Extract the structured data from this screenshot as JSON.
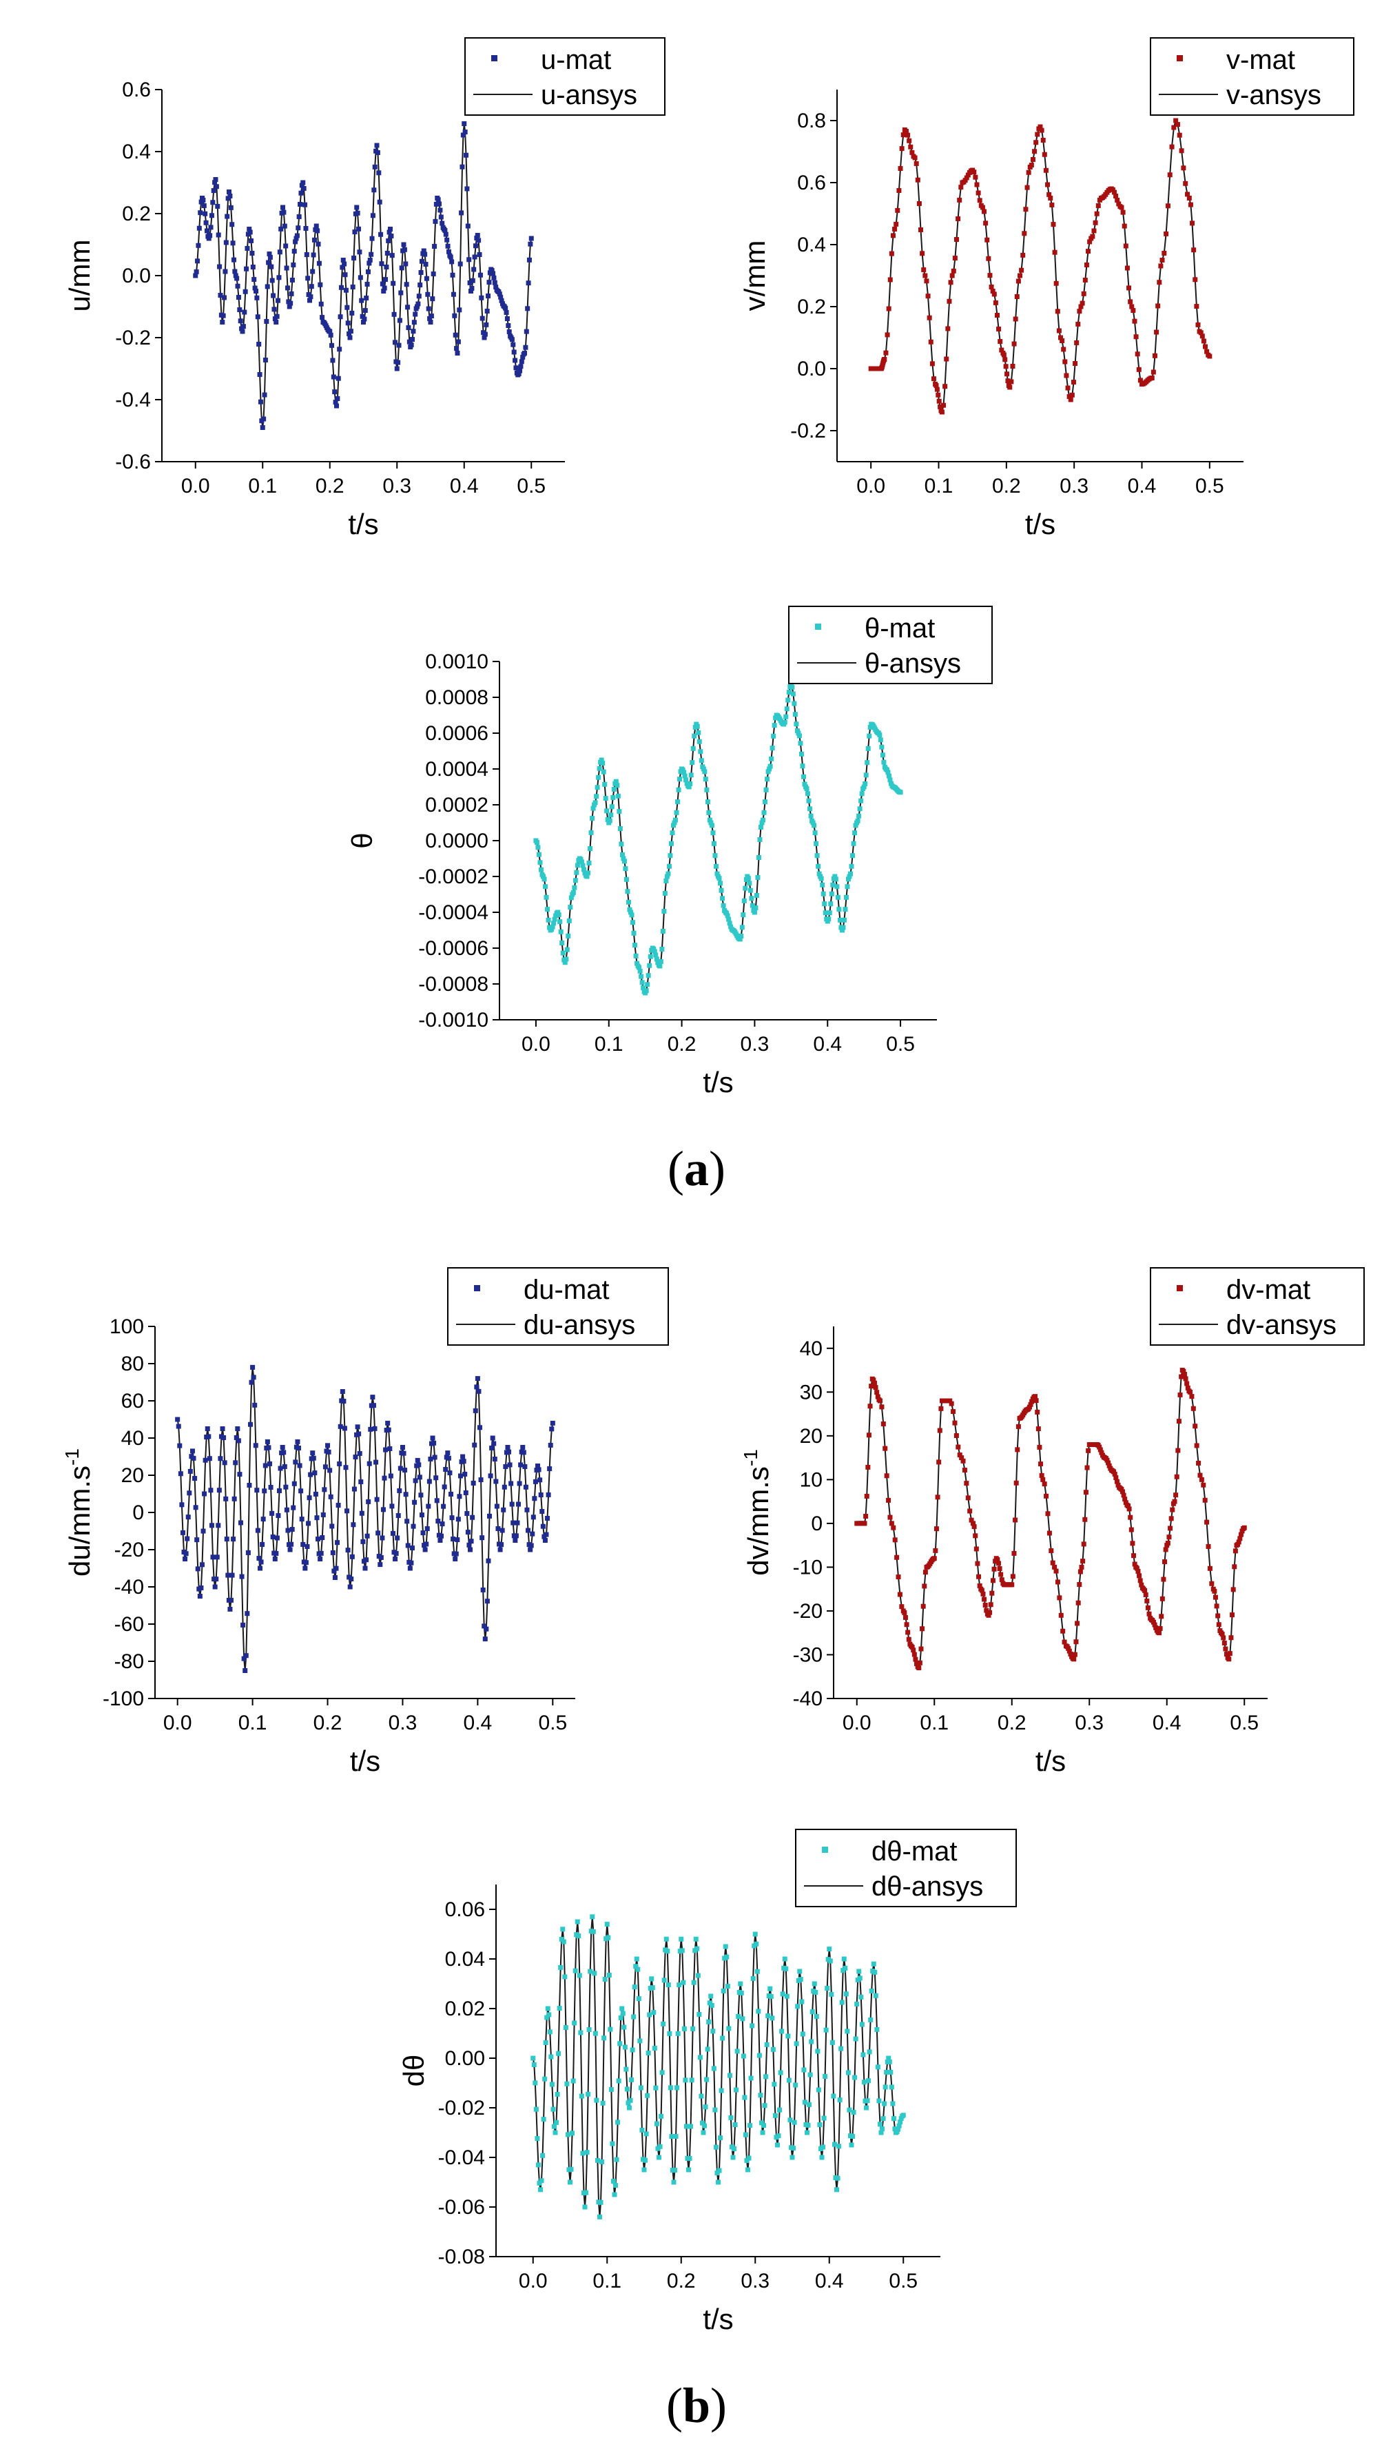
{
  "figure": {
    "panel_a_label": {
      "open": "(",
      "letter": "a",
      "close": ")"
    },
    "panel_b_label": {
      "open": "(",
      "letter": "b",
      "close": ")"
    }
  },
  "colors": {
    "navy": "#1f2b8f",
    "darkred": "#a81010",
    "cyan": "#2ec8c8",
    "line": "#1a1a1a"
  },
  "chart_data": [
    {
      "id": "u",
      "type": "line",
      "xlabel": "t/s",
      "ylabel": "u/mm",
      "xlim": [
        -0.05,
        0.55
      ],
      "ylim": [
        -0.6,
        0.6
      ],
      "xticks": [
        "0.0",
        "0.1",
        "0.2",
        "0.3",
        "0.4",
        "0.5"
      ],
      "yticks": [
        "-0.6",
        "-0.4",
        "-0.2",
        "0.0",
        "0.2",
        "0.4",
        "0.6"
      ],
      "legend": [
        "u-mat",
        "u-ansys"
      ],
      "legend_position": "top-right",
      "color": "navy",
      "x": [
        0.0,
        0.01,
        0.02,
        0.03,
        0.04,
        0.05,
        0.06,
        0.07,
        0.08,
        0.09,
        0.1,
        0.11,
        0.12,
        0.13,
        0.14,
        0.15,
        0.16,
        0.17,
        0.18,
        0.19,
        0.2,
        0.21,
        0.22,
        0.23,
        0.24,
        0.25,
        0.26,
        0.27,
        0.28,
        0.29,
        0.3,
        0.31,
        0.32,
        0.33,
        0.34,
        0.35,
        0.36,
        0.37,
        0.38,
        0.39,
        0.4,
        0.41,
        0.42,
        0.43,
        0.44,
        0.45,
        0.46,
        0.47,
        0.48,
        0.49,
        0.5
      ],
      "y": [
        0.0,
        0.25,
        0.12,
        0.31,
        -0.15,
        0.27,
        0.0,
        -0.18,
        0.15,
        -0.05,
        -0.49,
        0.07,
        -0.15,
        0.22,
        -0.1,
        0.12,
        0.3,
        -0.08,
        0.16,
        -0.15,
        -0.18,
        -0.42,
        0.05,
        -0.2,
        0.22,
        -0.15,
        0.05,
        0.42,
        -0.05,
        0.15,
        -0.3,
        0.1,
        -0.23,
        -0.1,
        0.08,
        -0.15,
        0.25,
        0.15,
        0.06,
        -0.25,
        0.49,
        -0.05,
        0.13,
        -0.2,
        0.02,
        -0.05,
        -0.1,
        -0.2,
        -0.32,
        -0.25,
        0.12
      ]
    },
    {
      "id": "v",
      "type": "line",
      "xlabel": "t/s",
      "ylabel": "v/mm",
      "xlim": [
        -0.05,
        0.55
      ],
      "ylim": [
        -0.3,
        0.9
      ],
      "xticks": [
        "0.0",
        "0.1",
        "0.2",
        "0.3",
        "0.4",
        "0.5"
      ],
      "yticks": [
        "-0.2",
        "0.0",
        "0.2",
        "0.4",
        "0.6",
        "0.8"
      ],
      "legend": [
        "v-mat",
        "v-ansys"
      ],
      "legend_position": "top-right",
      "color": "darkred",
      "x": [
        0.0,
        0.015,
        0.02,
        0.035,
        0.05,
        0.065,
        0.08,
        0.095,
        0.105,
        0.12,
        0.135,
        0.15,
        0.165,
        0.18,
        0.195,
        0.205,
        0.22,
        0.235,
        0.25,
        0.265,
        0.28,
        0.295,
        0.31,
        0.325,
        0.34,
        0.355,
        0.37,
        0.385,
        0.4,
        0.415,
        0.43,
        0.45,
        0.47,
        0.485,
        0.5
      ],
      "y": [
        0.0,
        0.0,
        0.03,
        0.45,
        0.77,
        0.68,
        0.3,
        -0.05,
        -0.14,
        0.3,
        0.6,
        0.64,
        0.52,
        0.25,
        0.05,
        -0.06,
        0.3,
        0.65,
        0.78,
        0.55,
        0.1,
        -0.1,
        0.2,
        0.42,
        0.55,
        0.58,
        0.52,
        0.2,
        -0.05,
        -0.03,
        0.35,
        0.8,
        0.55,
        0.12,
        0.04
      ]
    },
    {
      "id": "theta",
      "type": "line",
      "xlabel": "t/s",
      "ylabel": "θ",
      "xlim": [
        -0.05,
        0.55
      ],
      "ylim": [
        -0.001,
        0.001
      ],
      "xticks": [
        "0.0",
        "0.1",
        "0.2",
        "0.3",
        "0.4",
        "0.5"
      ],
      "yticks": [
        "-0.0010",
        "-0.0008",
        "-0.0006",
        "-0.0004",
        "-0.0002",
        "0.0000",
        "0.0002",
        "0.0004",
        "0.0006",
        "0.0008",
        "0.0010"
      ],
      "legend": [
        "θ-mat",
        "θ-ansys"
      ],
      "legend_position": "top-right",
      "color": "cyan",
      "x": [
        0.0,
        0.01,
        0.02,
        0.03,
        0.04,
        0.05,
        0.06,
        0.07,
        0.08,
        0.09,
        0.1,
        0.11,
        0.12,
        0.13,
        0.14,
        0.15,
        0.16,
        0.17,
        0.18,
        0.19,
        0.2,
        0.21,
        0.22,
        0.23,
        0.24,
        0.25,
        0.26,
        0.27,
        0.28,
        0.29,
        0.3,
        0.31,
        0.32,
        0.33,
        0.34,
        0.35,
        0.36,
        0.37,
        0.38,
        0.39,
        0.4,
        0.41,
        0.42,
        0.43,
        0.44,
        0.45,
        0.46,
        0.47,
        0.48,
        0.49,
        0.5
      ],
      "y": [
        0.0,
        -0.0002,
        -0.0005,
        -0.0004,
        -0.00068,
        -0.0003,
        -0.0001,
        -0.0002,
        0.0002,
        0.00045,
        0.0001,
        0.00033,
        -0.0001,
        -0.0004,
        -0.0007,
        -0.00085,
        -0.0006,
        -0.0007,
        -0.0002,
        0.0001,
        0.0004,
        0.0003,
        0.00065,
        0.0004,
        0.0001,
        -0.0002,
        -0.0004,
        -0.0005,
        -0.00055,
        -0.0002,
        -0.0004,
        0.0001,
        0.0004,
        0.0007,
        0.00065,
        0.00087,
        0.0006,
        0.0003,
        0.0001,
        -0.0002,
        -0.00045,
        -0.0002,
        -0.0005,
        -0.0002,
        0.0001,
        0.0003,
        0.00065,
        0.0006,
        0.0004,
        0.0003,
        0.00027
      ]
    },
    {
      "id": "du",
      "type": "line",
      "xlabel": "t/s",
      "ylabel": "du/mm.s",
      "ylabel_superscript": "-1",
      "xlim": [
        -0.03,
        0.53
      ],
      "ylim": [
        -100,
        100
      ],
      "xticks": [
        "0.0",
        "0.1",
        "0.2",
        "0.3",
        "0.4",
        "0.5"
      ],
      "yticks": [
        "-100",
        "-80",
        "-60",
        "-40",
        "-20",
        "0",
        "20",
        "40",
        "60",
        "80",
        "100"
      ],
      "legend": [
        "du-mat",
        "du-ansys"
      ],
      "legend_position": "top-right",
      "color": "navy",
      "x": [
        0.0,
        0.01,
        0.02,
        0.03,
        0.04,
        0.05,
        0.06,
        0.07,
        0.08,
        0.09,
        0.1,
        0.11,
        0.12,
        0.13,
        0.14,
        0.15,
        0.16,
        0.17,
        0.18,
        0.19,
        0.2,
        0.21,
        0.22,
        0.23,
        0.24,
        0.25,
        0.26,
        0.27,
        0.28,
        0.29,
        0.3,
        0.31,
        0.32,
        0.33,
        0.34,
        0.35,
        0.36,
        0.37,
        0.38,
        0.39,
        0.4,
        0.41,
        0.42,
        0.43,
        0.44,
        0.45,
        0.46,
        0.47,
        0.48,
        0.49,
        0.5
      ],
      "y": [
        50,
        -25,
        33,
        -45,
        45,
        -40,
        45,
        -52,
        45,
        -85,
        78,
        -30,
        38,
        -25,
        35,
        -20,
        38,
        -30,
        32,
        -25,
        36,
        -35,
        65,
        -40,
        46,
        -30,
        62,
        -28,
        48,
        -25,
        35,
        -30,
        28,
        -20,
        40,
        -15,
        32,
        -25,
        30,
        -20,
        72,
        -68,
        40,
        -20,
        35,
        -15,
        35,
        -20,
        25,
        -15,
        48
      ]
    },
    {
      "id": "dv",
      "type": "line",
      "xlabel": "t/s",
      "ylabel": "dv/mm.s",
      "ylabel_superscript": "-1",
      "xlim": [
        -0.03,
        0.53
      ],
      "ylim": [
        -40,
        45
      ],
      "xticks": [
        "0.0",
        "0.1",
        "0.2",
        "0.3",
        "0.4",
        "0.5"
      ],
      "yticks": [
        "-40",
        "-30",
        "-20",
        "-10",
        "0",
        "10",
        "20",
        "30",
        "40"
      ],
      "legend": [
        "dv-mat",
        "dv-ansys"
      ],
      "legend_position": "top-right",
      "color": "darkred",
      "x": [
        0.0,
        0.01,
        0.02,
        0.03,
        0.045,
        0.06,
        0.07,
        0.08,
        0.09,
        0.1,
        0.11,
        0.12,
        0.135,
        0.15,
        0.16,
        0.17,
        0.18,
        0.19,
        0.2,
        0.21,
        0.22,
        0.23,
        0.24,
        0.255,
        0.27,
        0.28,
        0.29,
        0.3,
        0.31,
        0.32,
        0.33,
        0.34,
        0.35,
        0.36,
        0.37,
        0.38,
        0.39,
        0.4,
        0.41,
        0.42,
        0.43,
        0.445,
        0.46,
        0.47,
        0.48,
        0.49,
        0.5
      ],
      "y": [
        0,
        0,
        33,
        28,
        0,
        -20,
        -28,
        -33,
        -10,
        -8,
        28,
        28,
        15,
        0,
        -15,
        -21,
        -8,
        -14,
        -14,
        24,
        26,
        29,
        10,
        -10,
        -28,
        -31,
        -10,
        18,
        18,
        15,
        12,
        8,
        4,
        -10,
        -15,
        -22,
        -25,
        -5,
        5,
        35,
        30,
        10,
        -15,
        -25,
        -31,
        -5,
        -1
      ]
    },
    {
      "id": "dtheta",
      "type": "line",
      "xlabel": "t/s",
      "ylabel": "dθ",
      "xlim": [
        -0.05,
        0.55
      ],
      "ylim": [
        -0.08,
        0.07
      ],
      "xticks": [
        "0.0",
        "0.1",
        "0.2",
        "0.3",
        "0.4",
        "0.5"
      ],
      "yticks": [
        "-0.08",
        "-0.06",
        "-0.04",
        "-0.02",
        "0.00",
        "0.02",
        "0.04",
        "0.06"
      ],
      "legend": [
        "dθ-mat",
        "dθ-ansys"
      ],
      "legend_position": "top-right",
      "color": "cyan",
      "x": [
        0.0,
        0.01,
        0.02,
        0.03,
        0.04,
        0.05,
        0.06,
        0.07,
        0.08,
        0.09,
        0.1,
        0.11,
        0.12,
        0.13,
        0.14,
        0.15,
        0.16,
        0.17,
        0.18,
        0.19,
        0.2,
        0.21,
        0.22,
        0.23,
        0.24,
        0.25,
        0.26,
        0.27,
        0.28,
        0.29,
        0.3,
        0.31,
        0.32,
        0.33,
        0.34,
        0.35,
        0.36,
        0.37,
        0.38,
        0.39,
        0.4,
        0.41,
        0.42,
        0.43,
        0.44,
        0.45,
        0.46,
        0.47,
        0.48,
        0.49,
        0.5
      ],
      "y": [
        0.0,
        -0.053,
        0.02,
        -0.03,
        0.052,
        -0.05,
        0.055,
        -0.06,
        0.057,
        -0.064,
        0.054,
        -0.055,
        0.02,
        -0.02,
        0.04,
        -0.045,
        0.032,
        -0.04,
        0.048,
        -0.05,
        0.048,
        -0.045,
        0.048,
        -0.03,
        0.025,
        -0.05,
        0.045,
        -0.04,
        0.03,
        -0.045,
        0.05,
        -0.03,
        0.028,
        -0.035,
        0.04,
        -0.04,
        0.035,
        -0.03,
        0.03,
        -0.04,
        0.044,
        -0.053,
        0.04,
        -0.035,
        0.035,
        -0.02,
        0.038,
        -0.03,
        0.0,
        -0.03,
        -0.023
      ]
    }
  ]
}
